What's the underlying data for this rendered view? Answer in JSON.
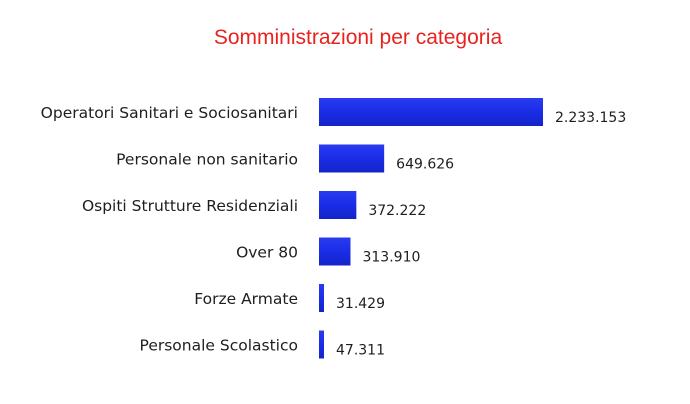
{
  "chart_data": {
    "type": "bar",
    "orientation": "horizontal",
    "title": "Somministrazioni per categoria",
    "xlabel": "",
    "ylabel": "",
    "categories": [
      "Operatori Sanitari e Sociosanitari",
      "Personale non sanitario",
      "Ospiti Strutture Residenziali",
      "Over 80",
      "Forze Armate",
      "Personale Scolastico"
    ],
    "values": [
      2233153,
      649626,
      372222,
      313910,
      31429,
      47311
    ],
    "value_labels": [
      "2.233.153",
      "649.626",
      "372.222",
      "313.910",
      "31.429",
      "47.311"
    ],
    "grid": false,
    "legend": "none",
    "colors": {
      "bar": "#1d2ee6",
      "title": "#e8231f",
      "text": "#1e1e1e"
    }
  }
}
